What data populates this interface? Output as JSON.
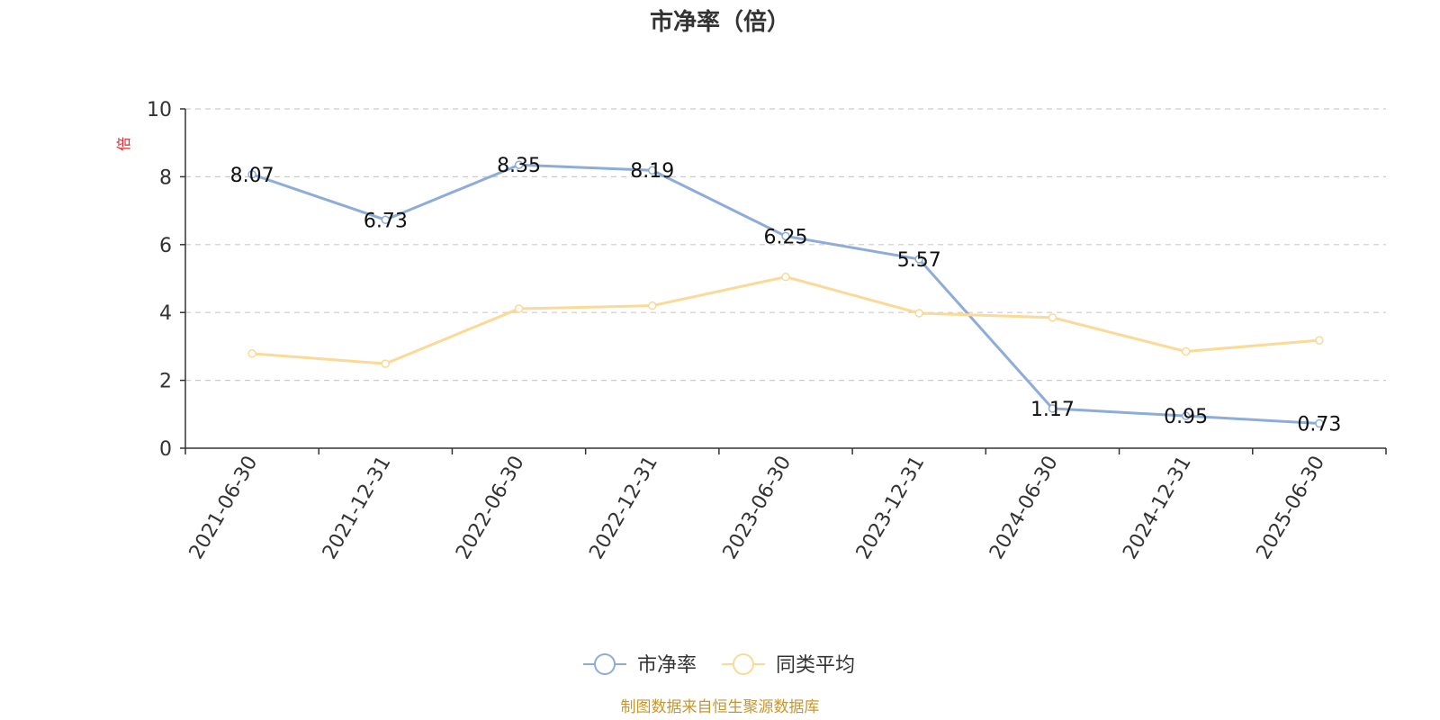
{
  "chart_data": {
    "type": "line",
    "title": "市净率（倍）",
    "ylabel": "倍",
    "x": [
      "2021-06-30",
      "2021-12-31",
      "2022-06-30",
      "2022-12-31",
      "2023-06-30",
      "2023-12-31",
      "2024-06-30",
      "2024-12-31",
      "2025-06-30"
    ],
    "ylim": [
      0,
      10
    ],
    "yticks": [
      "0",
      "2",
      "4",
      "6",
      "8",
      "10"
    ],
    "grid": true,
    "legend_position": "bottom",
    "series": [
      {
        "name": "市净率",
        "color": "#8eacd8",
        "values": [
          8.07,
          6.73,
          8.35,
          8.19,
          6.25,
          5.57,
          1.17,
          0.95,
          0.73
        ],
        "labels": [
          "8.07",
          "6.73",
          "8.35",
          "8.19",
          "6.25",
          "5.57",
          "1.17",
          "0.95",
          "0.73"
        ]
      },
      {
        "name": "同类平均",
        "color": "#fbd996",
        "values": [
          2.79,
          2.49,
          4.11,
          4.2,
          5.05,
          3.98,
          3.85,
          2.85,
          3.18
        ]
      }
    ]
  },
  "source": "制图数据来自恒生聚源数据库",
  "colors": {
    "title": "#333333",
    "axis": "#333333",
    "grid": "#cccccc",
    "ylabel": "#e8232a",
    "source": "#c8962e"
  }
}
